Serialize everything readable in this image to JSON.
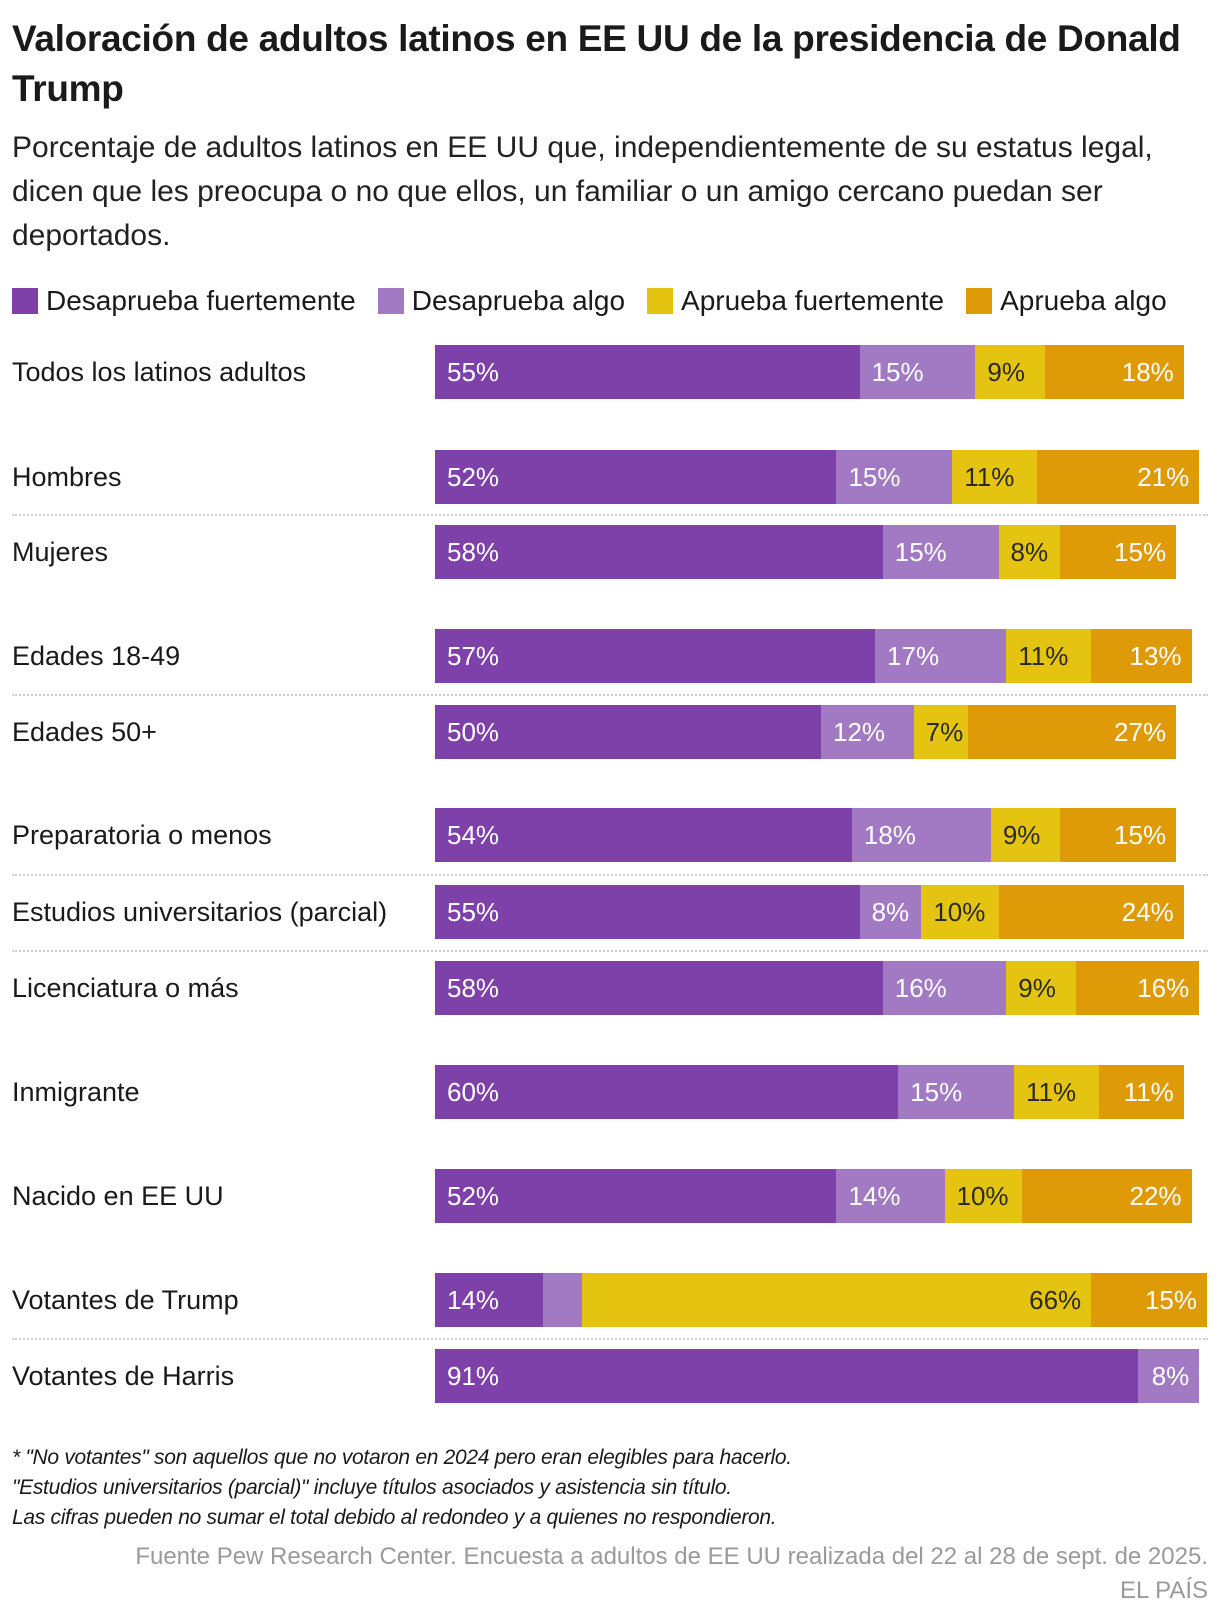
{
  "title": "Valoración de adultos latinos en EE UU de la presidencia de Donald Trump",
  "subtitle": "Porcentaje de adultos latinos en EE UU que, independientemente de su estatus legal, dicen que les preocupa o no que ellos, un familiar o un amigo cercano puedan ser deportados.",
  "chart_data": {
    "type": "bar",
    "orientation": "horizontal",
    "stacked": true,
    "xlim": [
      0,
      100
    ],
    "unit": "%",
    "categories": [
      "Todos los latinos adultos",
      "Hombres",
      "Mujeres",
      "Edades 18-49",
      "Edades 50+",
      "Preparatoria o menos",
      "Estudios universitarios (parcial)",
      "Licenciatura o más",
      "Inmigrante",
      "Nacido en EE UU",
      "Votantes de Trump",
      "Votantes de Harris"
    ],
    "series": [
      {
        "name": "Desaprueba fuertemente",
        "color": "#7d41a9",
        "text_color": "#ffffff",
        "values": [
          55,
          52,
          58,
          57,
          50,
          54,
          55,
          58,
          60,
          52,
          14,
          91
        ]
      },
      {
        "name": "Desaprueba algo",
        "color": "#a27ac3",
        "text_color": "#ffffff",
        "values": [
          15,
          15,
          15,
          17,
          12,
          18,
          8,
          16,
          15,
          14,
          5,
          8
        ]
      },
      {
        "name": "Aprueba fuertemente",
        "color": "#e5c411",
        "text_color": "#2a2a2a",
        "values": [
          9,
          11,
          8,
          11,
          7,
          9,
          10,
          9,
          11,
          10,
          66,
          0
        ]
      },
      {
        "name": "Aprueba algo",
        "color": "#df9a08",
        "text_color": "#ffffff",
        "values": [
          18,
          21,
          15,
          13,
          27,
          15,
          24,
          16,
          11,
          22,
          15,
          0
        ]
      }
    ],
    "unlabeled": [
      {
        "category": "Votantes de Trump",
        "series": "Desaprueba algo"
      }
    ],
    "legend_position": "top",
    "grid": false
  },
  "notes": [
    "* \"No votantes\" son aquellos que no votaron en 2024 pero eran elegibles para hacerlo.",
    "\"Estudios universitarios (parcial)\" incluye títulos asociados y asistencia sin título.",
    "Las cifras pueden no sumar el total debido al redondeo y a quienes no respondieron."
  ],
  "source": "Fuente Pew Research Center. Encuesta a adultos de EE UU realizada del 22 al 28 de sept. de 2025.",
  "brand": "EL PAÍS"
}
